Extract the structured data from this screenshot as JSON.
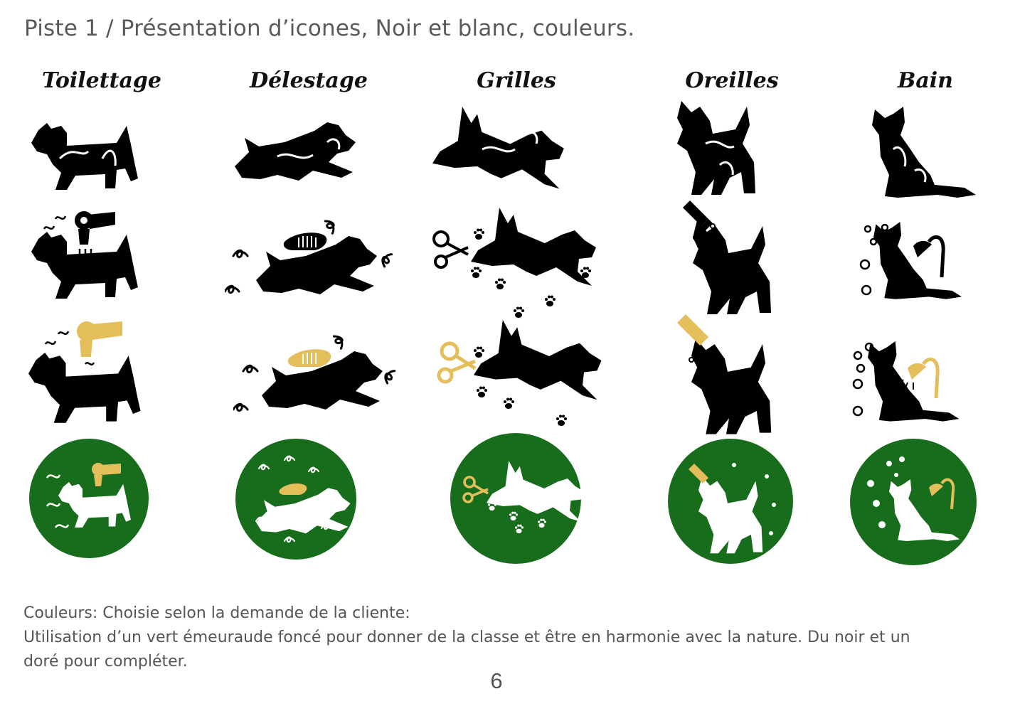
{
  "page_title": "Piste 1 / Présentation d’icones, Noir et blanc, couleurs.",
  "columns": [
    {
      "label": "Toilettage"
    },
    {
      "label": "Délestage"
    },
    {
      "label": "Grilles"
    },
    {
      "label": "Oreilles"
    },
    {
      "label": "Bain"
    }
  ],
  "rows": [
    "silhouette",
    "black-white",
    "black-gold",
    "green-circle"
  ],
  "colors": {
    "black": "#000000",
    "gold": "#e5be5c",
    "green": "#176d1b",
    "white": "#ffffff"
  },
  "footer": {
    "line1": "Couleurs: Choisie selon la demande de la cliente:",
    "line2": "Utilisation d’un vert émeuraude foncé pour donner de la classe et être en harmonie avec la nature. Du noir et un",
    "line3": "doré pour compléter."
  },
  "page_number": "6"
}
